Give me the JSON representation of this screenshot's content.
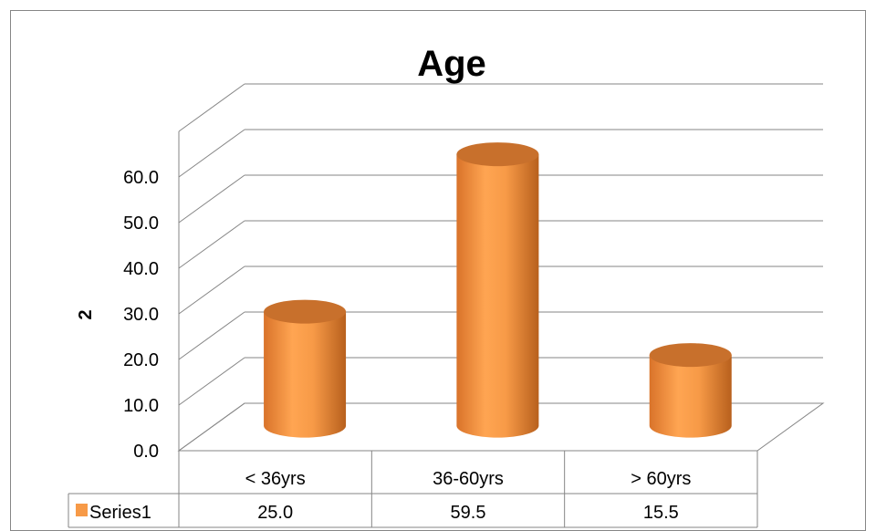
{
  "chart_data": {
    "type": "bar",
    "title": "Age",
    "xlabel": "",
    "ylabel": "2",
    "categories": [
      "< 36yrs",
      "36-60yrs",
      "> 60yrs"
    ],
    "series": [
      {
        "name": "Series1",
        "values": [
          25.0,
          59.5,
          15.5
        ]
      }
    ],
    "value_labels": [
      "25.0",
      "59.5",
      "15.5"
    ],
    "ylim": [
      0,
      70
    ],
    "yticks": [
      "0.0",
      "10.0",
      "20.0",
      "30.0",
      "40.0",
      "50.0",
      "60.0"
    ],
    "grid": true,
    "style": "3d-cylinder",
    "data_table": true,
    "colors": {
      "bar": "#f79a47",
      "bar_top": "#c8702c",
      "grid": "#868686",
      "frame": "#868686",
      "text": "#000000"
    }
  }
}
